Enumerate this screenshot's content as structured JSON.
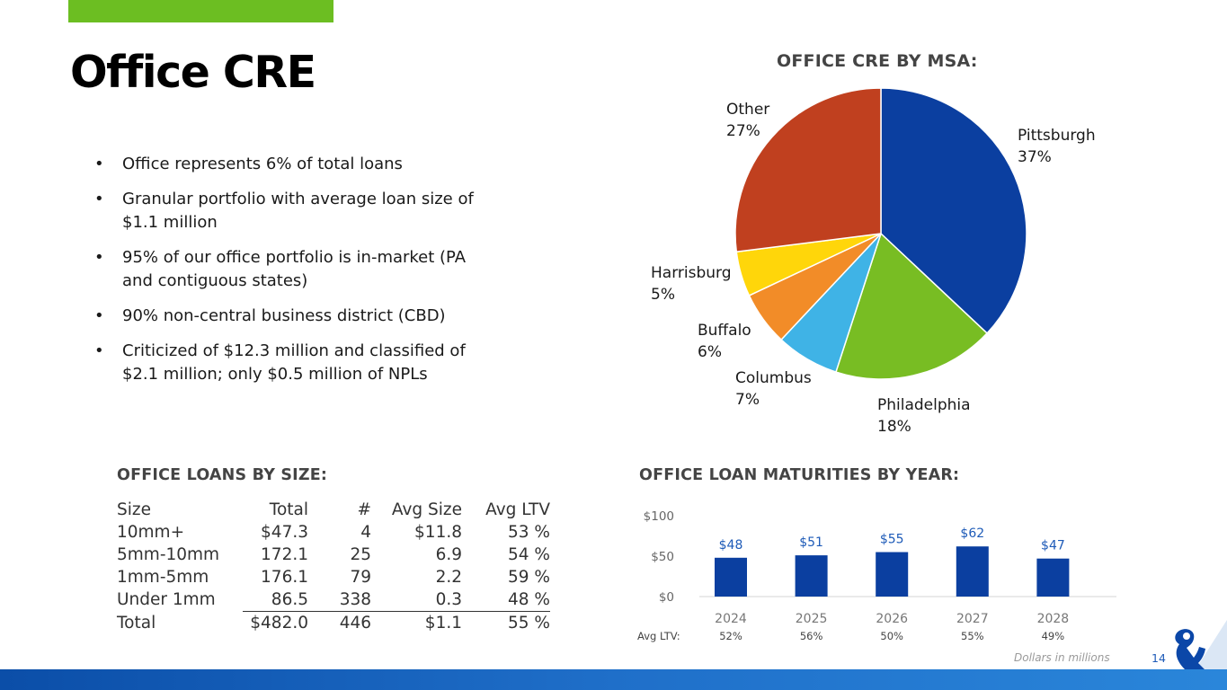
{
  "page": {
    "title": "Office CRE",
    "page_number": "14",
    "footnote": "Dollars in millions",
    "accent_color": "#6cbe22",
    "brand_blue": "#0b47a8"
  },
  "bullets": [
    "Office represents 6% of total loans",
    "Granular portfolio with average loan size of $1.1 million",
    "95% of our office portfolio is in-market (PA and contiguous states)",
    "90% non-central business district (CBD)",
    "Criticized of $12.3 million and classified of $2.1 million; only $0.5 million of NPLs"
  ],
  "sections": {
    "pie_title": "OFFICE CRE BY MSA:",
    "size_title": "OFFICE LOANS BY SIZE:",
    "maturity_title": "OFFICE LOAN MATURITIES BY YEAR:"
  },
  "loan_table": {
    "headers": [
      "Size",
      "Total",
      "#",
      "Avg Size",
      "Avg LTV"
    ],
    "rows": [
      [
        "10mm+",
        "$47.3",
        "4",
        "$11.8",
        "53 %"
      ],
      [
        "5mm-10mm",
        "172.1",
        "25",
        "6.9",
        "54 %"
      ],
      [
        "1mm-5mm",
        "176.1",
        "79",
        "2.2",
        "59 %"
      ],
      [
        "Under 1mm",
        "86.5",
        "338",
        "0.3",
        "48 %"
      ],
      [
        "Total",
        "$482.0",
        "446",
        "$1.1",
        "55 %"
      ]
    ]
  },
  "chart_data": [
    {
      "type": "pie",
      "title": "OFFICE CRE BY MSA:",
      "slices": [
        {
          "label": "Pittsburgh",
          "value": 37,
          "value_label": "37%",
          "color": "#0b3fa0"
        },
        {
          "label": "Philadelphia",
          "value": 18,
          "value_label": "18%",
          "color": "#78bd23"
        },
        {
          "label": "Columbus",
          "value": 7,
          "value_label": "7%",
          "color": "#3fb3e6"
        },
        {
          "label": "Buffalo",
          "value": 6,
          "value_label": "6%",
          "color": "#f28c28"
        },
        {
          "label": "Harrisburg",
          "value": 5,
          "value_label": "5%",
          "color": "#ffd60a"
        },
        {
          "label": "Other",
          "value": 27,
          "value_label": "27%",
          "color": "#c0401f"
        }
      ]
    },
    {
      "type": "bar",
      "title": "OFFICE LOAN MATURITIES BY YEAR:",
      "categories": [
        "2024",
        "2025",
        "2026",
        "2027",
        "2028"
      ],
      "values": [
        48,
        51,
        55,
        62,
        47
      ],
      "value_labels": [
        "$48",
        "$51",
        "$55",
        "$62",
        "$47"
      ],
      "ylim": [
        0,
        100
      ],
      "y_ticks": [
        0,
        50,
        100
      ],
      "y_tick_labels": [
        "$0",
        "$50",
        "$100"
      ],
      "bar_color": "#0b3fa0",
      "label_color": "#1e5bb8",
      "secondary_row": {
        "label": "Avg LTV:",
        "values": [
          "52%",
          "56%",
          "50%",
          "55%",
          "49%"
        ]
      }
    }
  ]
}
